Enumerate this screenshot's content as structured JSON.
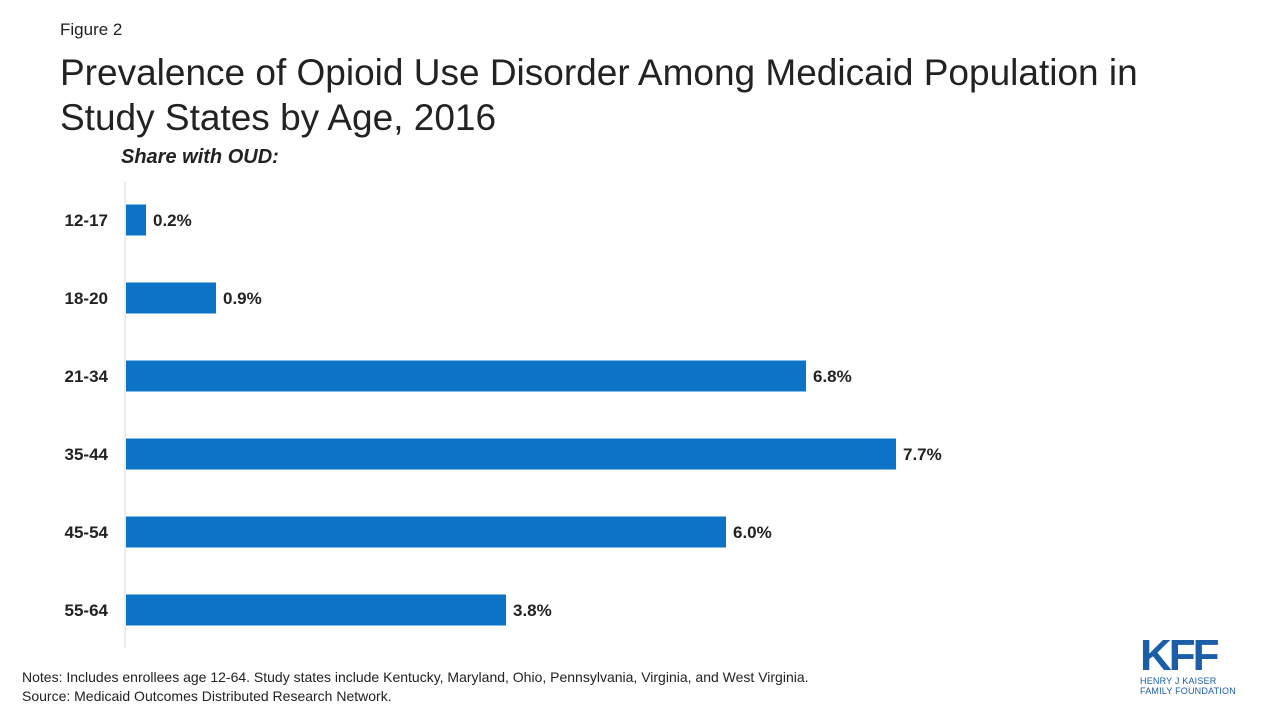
{
  "figure_label": "Figure 2",
  "chart_data": {
    "type": "bar",
    "orientation": "horizontal",
    "title": "Prevalence of Opioid Use Disorder Among Medicaid Population in Study States by Age, 2016",
    "subtitle": "Share with OUD:",
    "categories": [
      "12-17",
      "18-20",
      "21-34",
      "35-44",
      "45-54",
      "55-64"
    ],
    "values": [
      0.2,
      0.9,
      6.8,
      7.7,
      6.0,
      3.8
    ],
    "value_labels": [
      "0.2%",
      "0.9%",
      "6.8%",
      "7.7%",
      "6.0%",
      "3.8%"
    ],
    "unit": "%",
    "bar_color": "#0d73c7",
    "xlim": [
      0,
      10
    ],
    "grid": false,
    "legend": "none"
  },
  "notes": {
    "line1": "Notes: Includes enrollees age 12-64. Study states include Kentucky,  Maryland,  Ohio, Pennsylvania,  Virginia, and West Virginia.",
    "line2": "Source: Medicaid Outcomes Distributed Research Network."
  },
  "logo": {
    "mark": "KFF",
    "line1": "HENRY J KAISER",
    "line2": "FAMILY FOUNDATION"
  }
}
